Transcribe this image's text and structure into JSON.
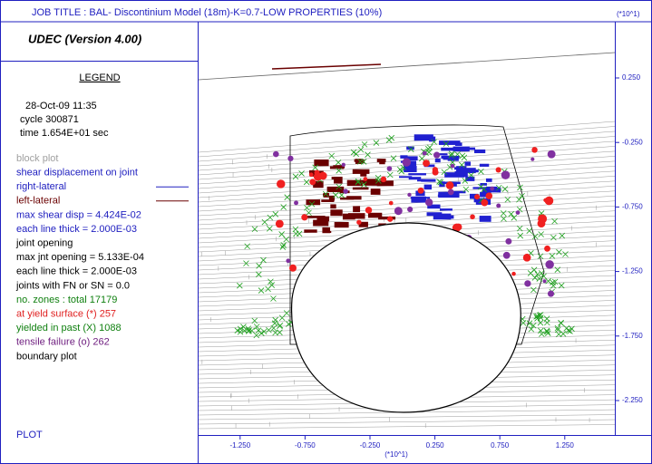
{
  "header": {
    "job_title": "JOB TITLE :  BAL- Discontinium Model (18m)-K=0.7-LOW PROPERTIES (10%)",
    "program": "UDEC (Version 4.00)"
  },
  "legend": {
    "title": "LEGEND",
    "info": [
      "28-Oct-09  11:35",
      "cycle  300871",
      "time   1.654E+01 sec"
    ],
    "items": [
      {
        "text": "block plot",
        "color": "#a0a0a0"
      },
      {
        "text": "shear displacement on joint",
        "color": "#2020c0"
      },
      {
        "text": "right-lateral",
        "color": "#2020c0",
        "line": true
      },
      {
        "text": "left-lateral",
        "color": "#6a0000",
        "line": true
      },
      {
        "text": "max shear disp =  4.424E-02",
        "color": "#2020c0"
      },
      {
        "text": "each line thick = 2.000E-03",
        "color": "#2020c0"
      },
      {
        "text": "joint opening",
        "color": "#000000"
      },
      {
        "text": "max jnt opening = 5.133E-04",
        "color": "#000000"
      },
      {
        "text": "each line thick = 2.000E-03",
        "color": "#000000"
      },
      {
        "text": "joints with FN or SN = 0.0",
        "color": "#000000"
      },
      {
        "text": "no. zones : total      17179",
        "color": "#108010"
      },
      {
        "text": "at yield surface (*)    257",
        "color": "#e02020"
      },
      {
        "text": "yielded in past  (X)   1088",
        "color": "#108010"
      },
      {
        "text": "tensile failure  (o)    262",
        "color": "#702080"
      },
      {
        "text": "boundary plot",
        "color": "#000000"
      }
    ],
    "footer": "PLOT"
  },
  "plot": {
    "scale_label": "(*10^1)",
    "xticks": [
      {
        "value": -1.25,
        "label": "-1.250"
      },
      {
        "value": -0.75,
        "label": "-0.750"
      },
      {
        "value": -0.25,
        "label": "-0.250"
      },
      {
        "value": 0.25,
        "label": "0.250"
      },
      {
        "value": 0.75,
        "label": "0.750"
      },
      {
        "value": 1.25,
        "label": "1.250"
      }
    ],
    "yticks": [
      {
        "value": 0.25,
        "label": "0.250"
      },
      {
        "value": -0.25,
        "label": "-0.250"
      },
      {
        "value": -0.75,
        "label": "-0.750"
      },
      {
        "value": -1.25,
        "label": "-1.250"
      },
      {
        "value": -1.75,
        "label": "-1.750"
      },
      {
        "value": -2.25,
        "label": "-2.250"
      }
    ]
  }
}
